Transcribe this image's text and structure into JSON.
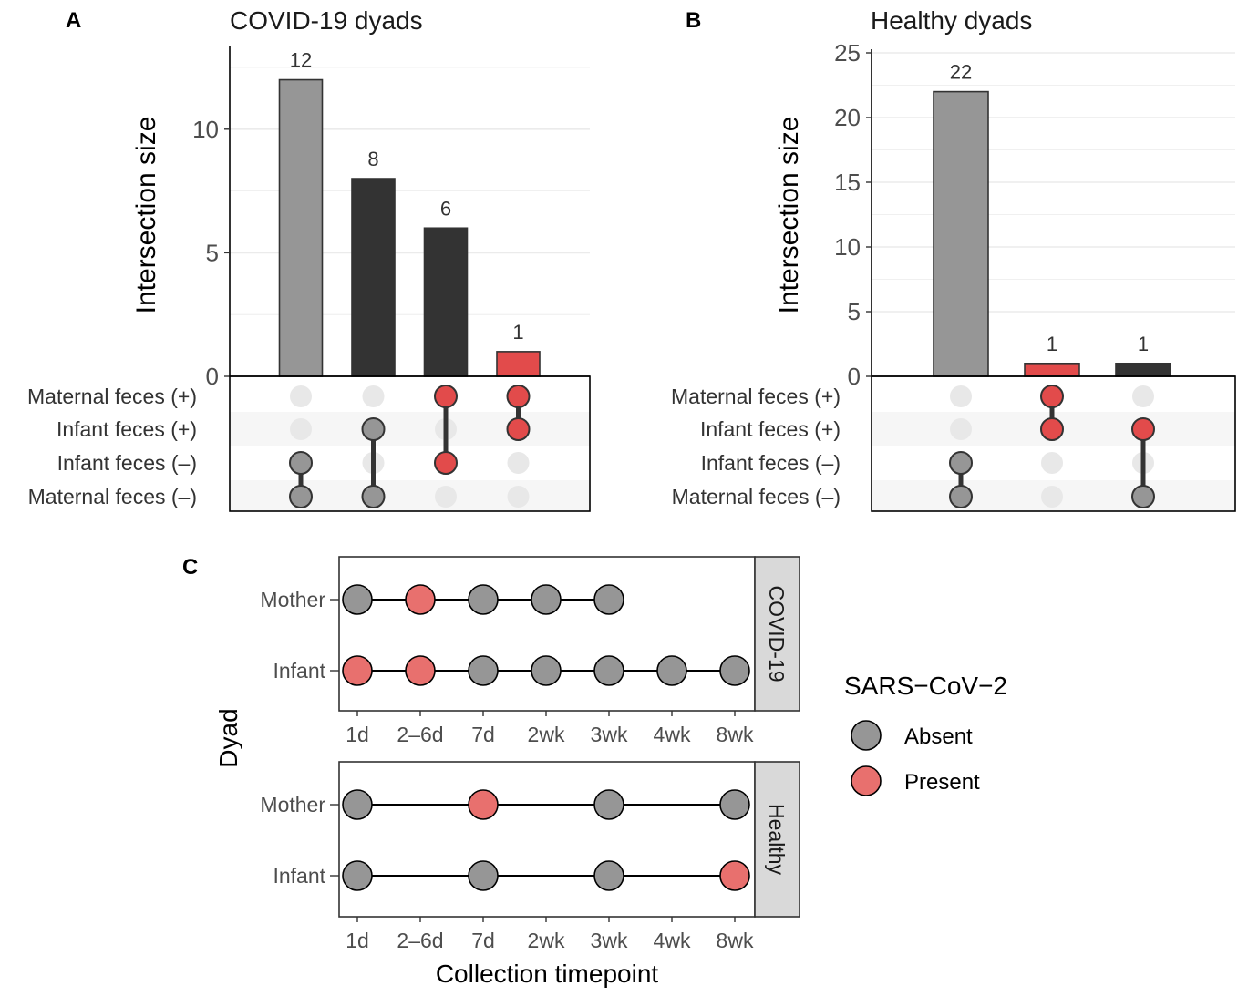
{
  "colors": {
    "absent": "#969696",
    "present_dot": "#E24B4B",
    "present_point": "#E8706E",
    "dark_bar": "#333333",
    "grey_bar": "#969696",
    "red_bar": "#E24B4B",
    "empty_dot": "#E8E8E8",
    "strip": "#D9D9D9",
    "text_dark": "#1a1a1a",
    "text_tick": "#4d4d4d"
  },
  "chart_data": [
    {
      "panel": "A",
      "type": "bar",
      "title": "COVID-19 dyads",
      "ylabel": "Intersection size",
      "ylim": [
        0,
        13.2
      ],
      "yticks": [
        "0",
        "5",
        "10"
      ],
      "bars": [
        {
          "value": 12,
          "label": "12",
          "color": "grey"
        },
        {
          "value": 8,
          "label": "8",
          "color": "dark"
        },
        {
          "value": 6,
          "label": "6",
          "color": "dark"
        },
        {
          "value": 1,
          "label": "1",
          "color": "red"
        }
      ],
      "sets": [
        "Maternal feces (+)",
        "Infant feces (+)",
        "Infant feces (–)",
        "Maternal feces (–)"
      ],
      "membership": [
        [
          2,
          3
        ],
        [
          1,
          3
        ],
        [
          0,
          2
        ],
        [
          0,
          1
        ]
      ],
      "member_color": [
        "grey",
        "grey",
        "red",
        "red"
      ]
    },
    {
      "panel": "B",
      "type": "bar",
      "title": "Healthy dyads",
      "ylabel": "Intersection size",
      "ylim": [
        0,
        25
      ],
      "yticks": [
        "0",
        "5",
        "10",
        "15",
        "20",
        "25"
      ],
      "bars": [
        {
          "value": 22,
          "label": "22",
          "color": "grey"
        },
        {
          "value": 1,
          "label": "1",
          "color": "red"
        },
        {
          "value": 1,
          "label": "1",
          "color": "dark"
        }
      ],
      "sets": [
        "Maternal feces (+)",
        "Infant feces (+)",
        "Infant feces (–)",
        "Maternal feces (–)"
      ],
      "membership": [
        [
          2,
          3
        ],
        [
          0,
          1
        ],
        [
          1,
          3
        ]
      ],
      "member_color": [
        "grey",
        "red",
        "mixed"
      ]
    },
    {
      "panel": "C",
      "type": "scatter",
      "xlabel": "Collection timepoint",
      "ylabel": "Dyad",
      "x_categories": [
        "1d",
        "2–6d",
        "7d",
        "2wk",
        "3wk",
        "4wk",
        "8wk"
      ],
      "facets": [
        {
          "strip": "COVID-19",
          "rows": [
            {
              "label": "Mother",
              "points": [
                [
                  "1d",
                  "Absent"
                ],
                [
                  "2–6d",
                  "Present"
                ],
                [
                  "7d",
                  "Absent"
                ],
                [
                  "2wk",
                  "Absent"
                ],
                [
                  "3wk",
                  "Absent"
                ]
              ]
            },
            {
              "label": "Infant",
              "points": [
                [
                  "1d",
                  "Present"
                ],
                [
                  "2–6d",
                  "Present"
                ],
                [
                  "7d",
                  "Absent"
                ],
                [
                  "2wk",
                  "Absent"
                ],
                [
                  "3wk",
                  "Absent"
                ],
                [
                  "4wk",
                  "Absent"
                ],
                [
                  "8wk",
                  "Absent"
                ]
              ]
            }
          ]
        },
        {
          "strip": "Healthy",
          "rows": [
            {
              "label": "Mother",
              "points": [
                [
                  "1d",
                  "Absent"
                ],
                [
                  "7d",
                  "Present"
                ],
                [
                  "3wk",
                  "Absent"
                ],
                [
                  "8wk",
                  "Absent"
                ]
              ]
            },
            {
              "label": "Infant",
              "points": [
                [
                  "1d",
                  "Absent"
                ],
                [
                  "7d",
                  "Absent"
                ],
                [
                  "3wk",
                  "Absent"
                ],
                [
                  "8wk",
                  "Present"
                ]
              ]
            }
          ]
        }
      ],
      "legend": {
        "title": "SARS−CoV−2",
        "entries": [
          "Absent",
          "Present"
        ],
        "position": "right"
      }
    }
  ]
}
